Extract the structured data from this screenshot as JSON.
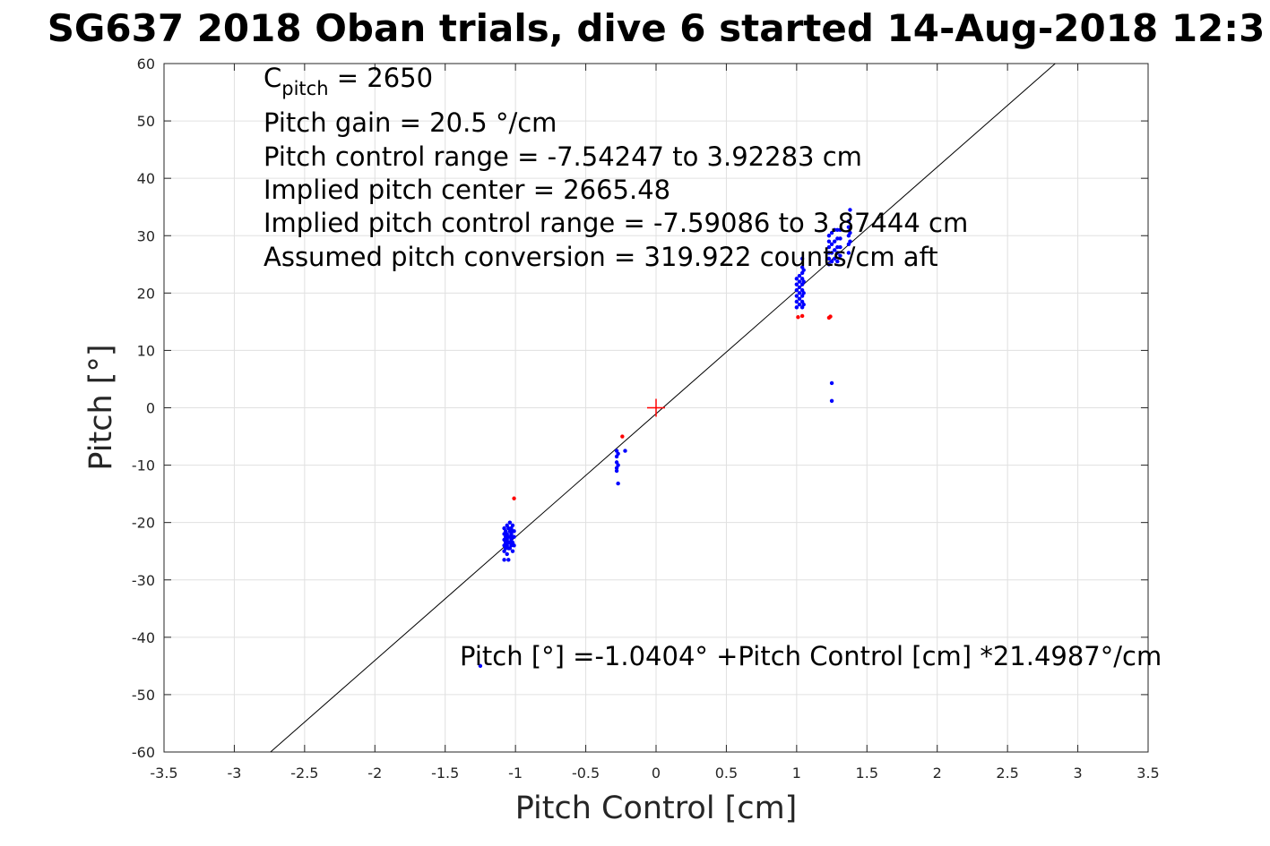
{
  "chart_data": {
    "type": "scatter",
    "title": "SG637 2018 Oban trials, dive 6 started 14-Aug-2018 12:3",
    "xlabel": "Pitch Control [cm]",
    "ylabel": "Pitch [°]",
    "xlim": [
      -3.5,
      3.5
    ],
    "ylim": [
      -60,
      60
    ],
    "xticks": [
      "-3.5",
      "-3",
      "-2.5",
      "-2",
      "-1.5",
      "-1",
      "-0.5",
      "0",
      "0.5",
      "1",
      "1.5",
      "2",
      "2.5",
      "3",
      "3.5"
    ],
    "yticks": [
      "60",
      "50",
      "40",
      "30",
      "20",
      "10",
      "0",
      "-10",
      "-20",
      "-30",
      "-40",
      "-50",
      "-60"
    ],
    "grid": true,
    "colors": {
      "blue": "#0000ff",
      "red": "#ff0000",
      "fit": "#000000",
      "grid": "#e0e0e0",
      "axes": "#262626"
    },
    "annotation_lines": [
      {
        "main": "C",
        "sub": "pitch",
        "rest": " = 2650"
      },
      {
        "main": "Pitch gain = 20.5 °/cm",
        "sub": "",
        "rest": ""
      },
      {
        "main": "Pitch control range = -7.54247 to 3.92283 cm",
        "sub": "",
        "rest": ""
      },
      {
        "main": "Implied pitch center = 2665.48",
        "sub": "",
        "rest": ""
      },
      {
        "main": "Implied pitch control range = -7.59086 to 3.87444 cm",
        "sub": "",
        "rest": ""
      },
      {
        "main": "Assumed pitch conversion = 319.922 counts/cm aft",
        "sub": "",
        "rest": ""
      }
    ],
    "fit_equation": "Pitch [°] =-1.0404° +Pitch Control [cm] *21.4987°/cm",
    "fit": {
      "intercept": -1.0404,
      "slope": 21.4987
    },
    "center_marker": {
      "x": 0,
      "y": 0
    },
    "series": [
      {
        "color": "blue",
        "points": [
          [
            -1.08,
            -21.0
          ],
          [
            -1.08,
            -22.0
          ],
          [
            -1.08,
            -23.0
          ],
          [
            -1.08,
            -24.0
          ],
          [
            -1.08,
            -25.0
          ],
          [
            -1.08,
            -26.5
          ],
          [
            -1.07,
            -21.5
          ],
          [
            -1.07,
            -22.5
          ],
          [
            -1.07,
            -23.5
          ],
          [
            -1.07,
            -24.5
          ],
          [
            -1.06,
            -20.5
          ],
          [
            -1.06,
            -22.0
          ],
          [
            -1.06,
            -23.0
          ],
          [
            -1.06,
            -24.0
          ],
          [
            -1.06,
            -25.5
          ],
          [
            -1.05,
            -21.0
          ],
          [
            -1.05,
            -22.5
          ],
          [
            -1.05,
            -23.5
          ],
          [
            -1.05,
            -24.5
          ],
          [
            -1.05,
            -26.5
          ],
          [
            -1.04,
            -20.0
          ],
          [
            -1.04,
            -21.5
          ],
          [
            -1.04,
            -22.5
          ],
          [
            -1.04,
            -23.5
          ],
          [
            -1.04,
            -24.5
          ],
          [
            -1.03,
            -21.0
          ],
          [
            -1.03,
            -22.0
          ],
          [
            -1.03,
            -23.0
          ],
          [
            -1.03,
            -24.0
          ],
          [
            -1.02,
            -20.5
          ],
          [
            -1.02,
            -21.5
          ],
          [
            -1.02,
            -22.5
          ],
          [
            -1.02,
            -23.5
          ],
          [
            -1.02,
            -25.0
          ],
          [
            -1.01,
            -21.5
          ],
          [
            -1.01,
            -22.5
          ],
          [
            -1.01,
            -24.0
          ],
          [
            -0.28,
            -7.5
          ],
          [
            -0.28,
            -8.5
          ],
          [
            -0.28,
            -9.5
          ],
          [
            -0.28,
            -10.5
          ],
          [
            -0.28,
            -11.0
          ],
          [
            -0.27,
            -8.0
          ],
          [
            -0.27,
            -10.0
          ],
          [
            -0.27,
            -13.2
          ],
          [
            -0.22,
            -7.5
          ],
          [
            1.0,
            17.5
          ],
          [
            1.0,
            18.5
          ],
          [
            1.0,
            19.5
          ],
          [
            1.0,
            20.5
          ],
          [
            1.0,
            21.5
          ],
          [
            1.0,
            22.5
          ],
          [
            1.02,
            18.0
          ],
          [
            1.02,
            19.0
          ],
          [
            1.02,
            20.0
          ],
          [
            1.02,
            21.0
          ],
          [
            1.02,
            22.0
          ],
          [
            1.02,
            23.0
          ],
          [
            1.04,
            17.5
          ],
          [
            1.04,
            18.5
          ],
          [
            1.04,
            19.5
          ],
          [
            1.04,
            20.5
          ],
          [
            1.04,
            21.5
          ],
          [
            1.04,
            22.5
          ],
          [
            1.04,
            23.5
          ],
          [
            1.04,
            24.5
          ],
          [
            1.04,
            26.0
          ],
          [
            1.05,
            18.0
          ],
          [
            1.05,
            20.0
          ],
          [
            1.05,
            22.0
          ],
          [
            1.05,
            24.0
          ],
          [
            1.23,
            25.0
          ],
          [
            1.23,
            26.0
          ],
          [
            1.23,
            27.0
          ],
          [
            1.23,
            28.0
          ],
          [
            1.23,
            29.0
          ],
          [
            1.23,
            30.0
          ],
          [
            1.25,
            25.5
          ],
          [
            1.25,
            27.0
          ],
          [
            1.25,
            28.5
          ],
          [
            1.25,
            30.5
          ],
          [
            1.25,
            4.3
          ],
          [
            1.25,
            1.2
          ],
          [
            1.27,
            26.0
          ],
          [
            1.27,
            27.5
          ],
          [
            1.27,
            29.0
          ],
          [
            1.27,
            31.0
          ],
          [
            1.29,
            25.5
          ],
          [
            1.29,
            27.0
          ],
          [
            1.29,
            28.0
          ],
          [
            1.29,
            29.5
          ],
          [
            1.29,
            31.0
          ],
          [
            1.31,
            26.5
          ],
          [
            1.31,
            28.0
          ],
          [
            1.31,
            29.5
          ],
          [
            1.31,
            31.0
          ],
          [
            1.37,
            27.0
          ],
          [
            1.37,
            28.5
          ],
          [
            1.37,
            30.0
          ],
          [
            1.37,
            31.5
          ],
          [
            1.37,
            32.5
          ],
          [
            1.38,
            29.0
          ],
          [
            1.38,
            30.5
          ],
          [
            1.38,
            34.5
          ],
          [
            -1.25,
            -45.0
          ]
        ]
      },
      {
        "color": "red",
        "points": [
          [
            -1.01,
            -15.8
          ],
          [
            -0.24,
            -5.0
          ],
          [
            1.01,
            15.8
          ],
          [
            1.04,
            16.0
          ],
          [
            1.23,
            15.7
          ],
          [
            1.24,
            15.9
          ]
        ]
      }
    ]
  }
}
